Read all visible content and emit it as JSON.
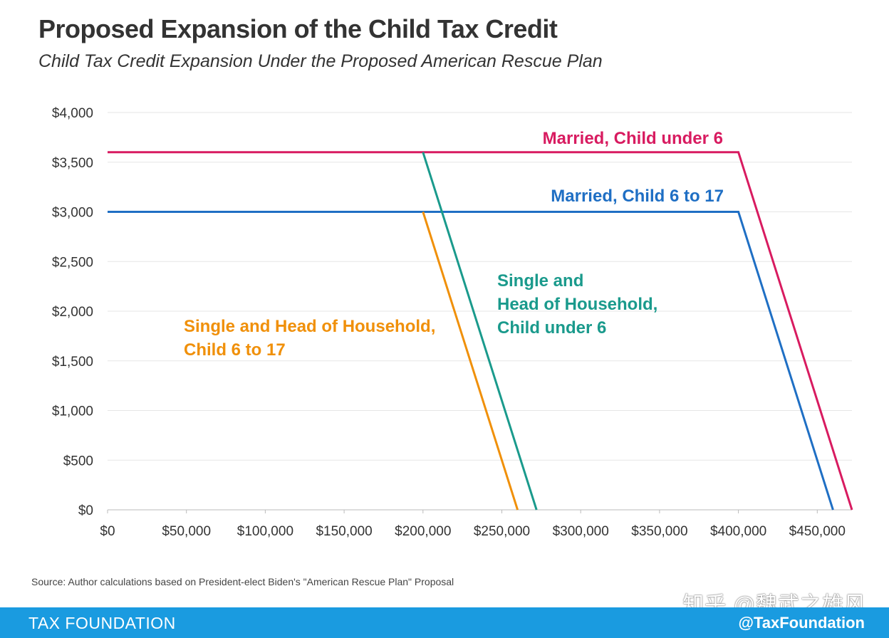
{
  "header": {
    "title": "Proposed Expansion of the Child Tax Credit",
    "subtitle": "Child Tax Credit Expansion Under the Proposed American Rescue Plan"
  },
  "source": "Source: Author calculations based on President-elect Biden's \"American Rescue Plan\" Proposal",
  "watermark": "知乎 @魏武之雄风",
  "footer": {
    "org": "TAX FOUNDATION",
    "handle": "@TaxFoundation"
  },
  "colors": {
    "married_under6": "#d81b60",
    "married_6to17": "#1f6fc4",
    "single_under6": "#1a9a8c",
    "single_6to17": "#f0900a",
    "grid": "#e6e6e6",
    "footer_bg": "#1a9be0"
  },
  "chart_data": {
    "type": "line",
    "title": "Proposed Expansion of the Child Tax Credit",
    "subtitle": "Child Tax Credit Expansion Under the Proposed American Rescue Plan",
    "xlabel": "",
    "ylabel": "",
    "xlim": [
      0,
      472000
    ],
    "ylim": [
      0,
      4000
    ],
    "grid": true,
    "x_ticks": [
      0,
      50000,
      100000,
      150000,
      200000,
      250000,
      300000,
      350000,
      400000,
      450000
    ],
    "x_tick_labels": [
      "$0",
      "$50,000",
      "$100,000",
      "$150,000",
      "$200,000",
      "$250,000",
      "$300,000",
      "$350,000",
      "$400,000",
      "$450,000"
    ],
    "y_ticks": [
      0,
      500,
      1000,
      1500,
      2000,
      2500,
      3000,
      3500,
      4000
    ],
    "y_tick_labels": [
      "$0",
      "$500",
      "$1,000",
      "$1,500",
      "$2,000",
      "$2,500",
      "$3,000",
      "$3,500",
      "$4,000"
    ],
    "series": [
      {
        "name": "Married,  Child under 6",
        "color": "#d81b60",
        "points": [
          [
            0,
            3600
          ],
          [
            400000,
            3600
          ],
          [
            472000,
            0
          ]
        ]
      },
      {
        "name": "Married, Child 6 to 17",
        "color": "#1f6fc4",
        "points": [
          [
            0,
            3000
          ],
          [
            400000,
            3000
          ],
          [
            460000,
            0
          ]
        ]
      },
      {
        "name_lines": [
          "Single and",
          "Head of Household,",
          "Child under 6"
        ],
        "color": "#1a9a8c",
        "points": [
          [
            200000,
            3600
          ],
          [
            272000,
            0
          ]
        ]
      },
      {
        "name_lines": [
          "Single and Head of Household,",
          "Child 6 to 17"
        ],
        "color": "#f0900a",
        "points": [
          [
            200000,
            3000
          ],
          [
            260000,
            0
          ]
        ]
      }
    ]
  }
}
